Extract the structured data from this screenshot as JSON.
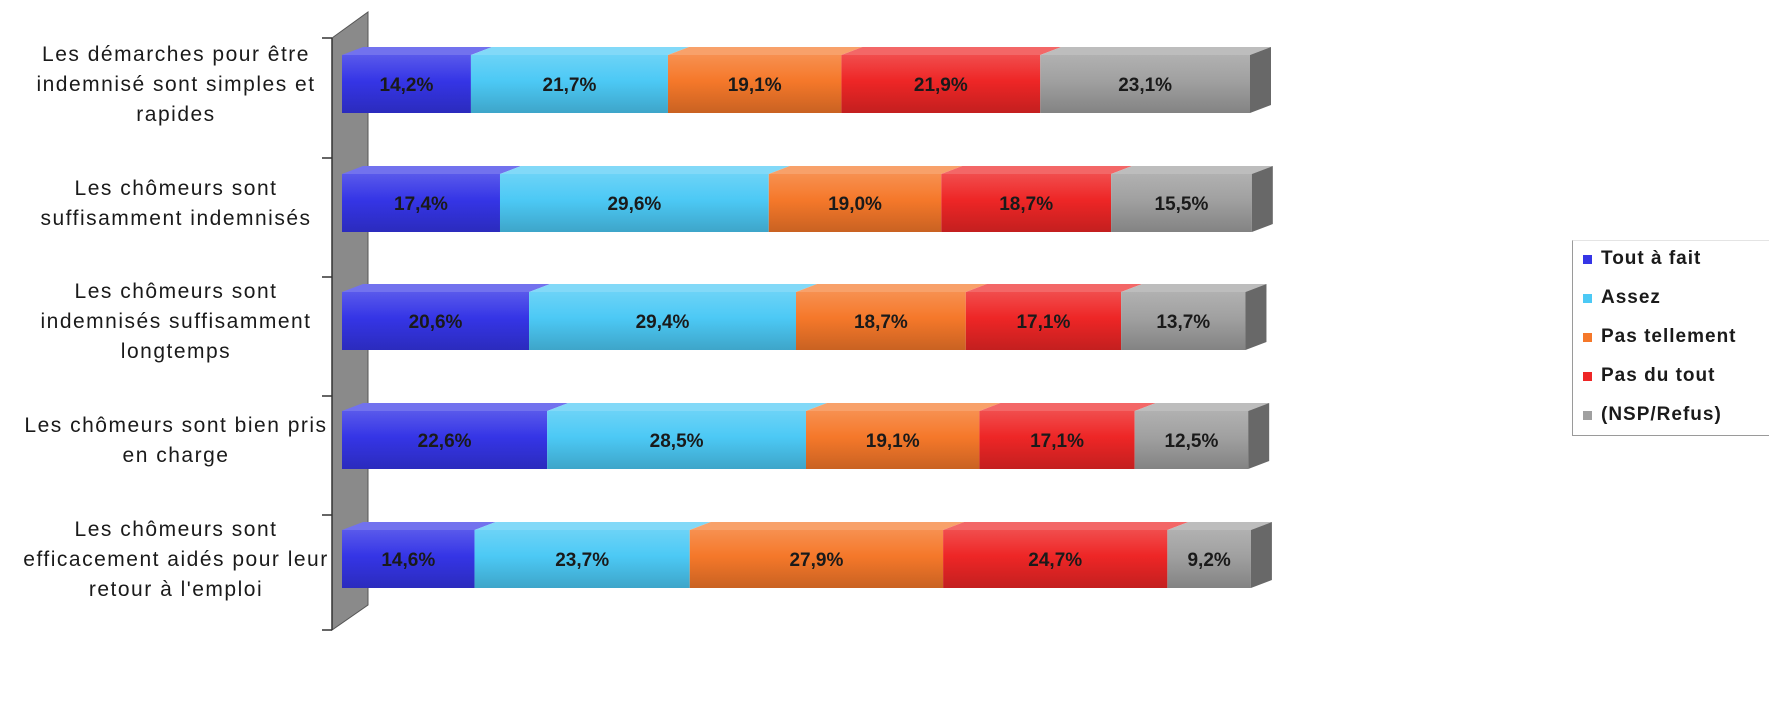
{
  "chart_data": {
    "type": "bar",
    "orientation": "horizontal",
    "stacked": true,
    "percent_stacked": true,
    "three_d": true,
    "xlim": [
      0,
      100
    ],
    "categories": [
      "Les démarches pour être indemnisé sont simples et rapides",
      "Les chômeurs sont suffisamment indemnisés",
      "Les chômeurs sont indemnisés suffisamment longtemps",
      "Les chômeurs sont bien pris en charge",
      "Les chômeurs sont efficacement aidés pour leur retour à l'emploi"
    ],
    "category_lines": [
      [
        "Les démarches pour être",
        "indemnisé sont simples et",
        "rapides"
      ],
      [
        "Les chômeurs sont",
        "suffisamment indemnisés"
      ],
      [
        "Les chômeurs sont",
        "indemnisés suffisamment",
        "longtemps"
      ],
      [
        "Les chômeurs sont bien pris",
        "en charge"
      ],
      [
        "Les chômeurs sont",
        "efficacement aidés pour leur",
        "retour à l'emploi"
      ]
    ],
    "series": [
      {
        "name": "Tout à fait",
        "color": "#3535e6",
        "values": [
          14.2,
          17.4,
          20.6,
          22.6,
          14.6
        ],
        "labels": [
          "14,2%",
          "17,4%",
          "20,6%",
          "22,6%",
          "14,6%"
        ]
      },
      {
        "name": "Assez",
        "color": "#4cc9f5",
        "values": [
          21.7,
          29.6,
          29.4,
          28.5,
          23.7
        ],
        "labels": [
          "21,7%",
          "29,6%",
          "29,4%",
          "28,5%",
          "23,7%"
        ]
      },
      {
        "name": "Pas tellement",
        "color": "#f5782a",
        "values": [
          19.1,
          19.0,
          18.7,
          19.1,
          27.9
        ],
        "labels": [
          "19,1%",
          "19,0%",
          "18,7%",
          "19,1%",
          "27,9%"
        ]
      },
      {
        "name": "Pas du tout",
        "color": "#ee2626",
        "values": [
          21.9,
          18.7,
          17.1,
          17.1,
          24.7
        ],
        "labels": [
          "21,9%",
          "18,7%",
          "17,1%",
          "17,1%",
          "24,7%"
        ]
      },
      {
        "name": "(NSP/Refus)",
        "color": "#a0a0a0",
        "values": [
          23.1,
          15.5,
          13.7,
          12.5,
          9.2
        ],
        "labels": [
          "23,1%",
          "15,5%",
          "13,7%",
          "12,5%",
          "9,2%"
        ]
      }
    ],
    "legend_position": "right",
    "grid": false
  }
}
